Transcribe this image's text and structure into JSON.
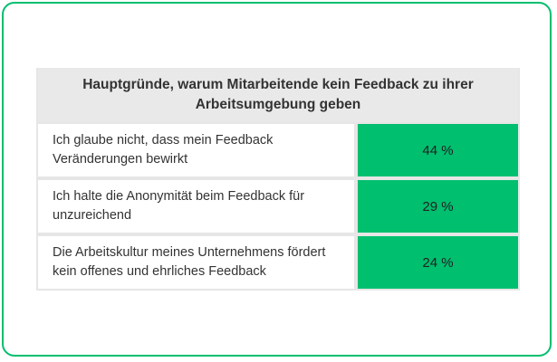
{
  "table": {
    "header": "Hauptgründe, warum Mitarbeitende kein Feedback zu ihrer Arbeitsumgebung geben",
    "rows": [
      [
        "Ich glaube nicht, dass mein Feedback Veränderungen bewirkt",
        "44 %"
      ],
      [
        "Ich halte die Anonymität beim Feedback für unzureichend",
        "29 %"
      ],
      [
        "Die Arbeitskultur meines Unternehmens fördert kein offenes und ehrliches Feedback",
        "24 %"
      ]
    ]
  }
}
